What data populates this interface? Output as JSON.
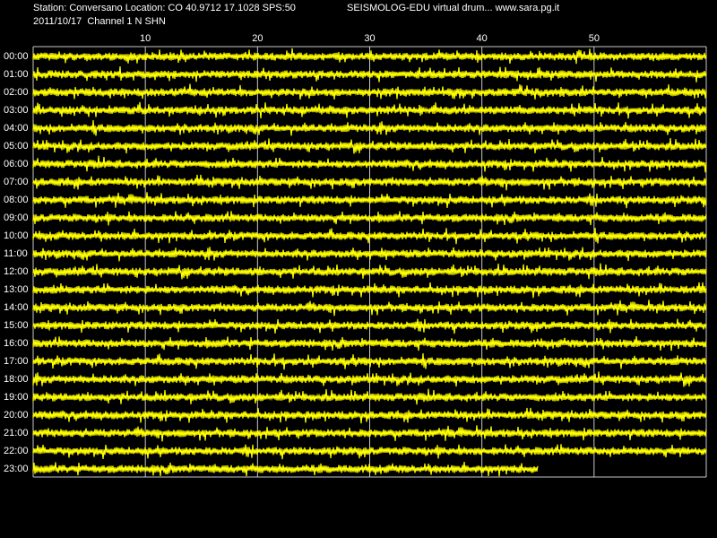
{
  "chart_data": {
    "type": "drum",
    "title": "Station: Conversano Location: CO 40.9712 17.1028 SPS:50",
    "subtitle": "SEISMOLOG-EDU virtual drum... www.sara.pg.it",
    "date_channel": "2011/10/17  Channel 1 N SHN",
    "categories": [
      "00:00",
      "01:00",
      "02:00",
      "03:00",
      "04:00",
      "05:00",
      "06:00",
      "07:00",
      "08:00",
      "09:00",
      "10:00",
      "11:00",
      "12:00",
      "13:00",
      "14:00",
      "15:00",
      "16:00",
      "17:00",
      "18:00",
      "19:00",
      "20:00",
      "21:00",
      "22:00",
      "23:00"
    ],
    "values": [
      60,
      60,
      60,
      60,
      60,
      60,
      60,
      60,
      60,
      60,
      60,
      60,
      60,
      60,
      60,
      60,
      60,
      60,
      60,
      60,
      60,
      60,
      60,
      45
    ],
    "xlim": [
      0,
      60
    ],
    "xticks": [
      10,
      20,
      30,
      40,
      50
    ],
    "color": "#ffff00",
    "grid": true
  }
}
